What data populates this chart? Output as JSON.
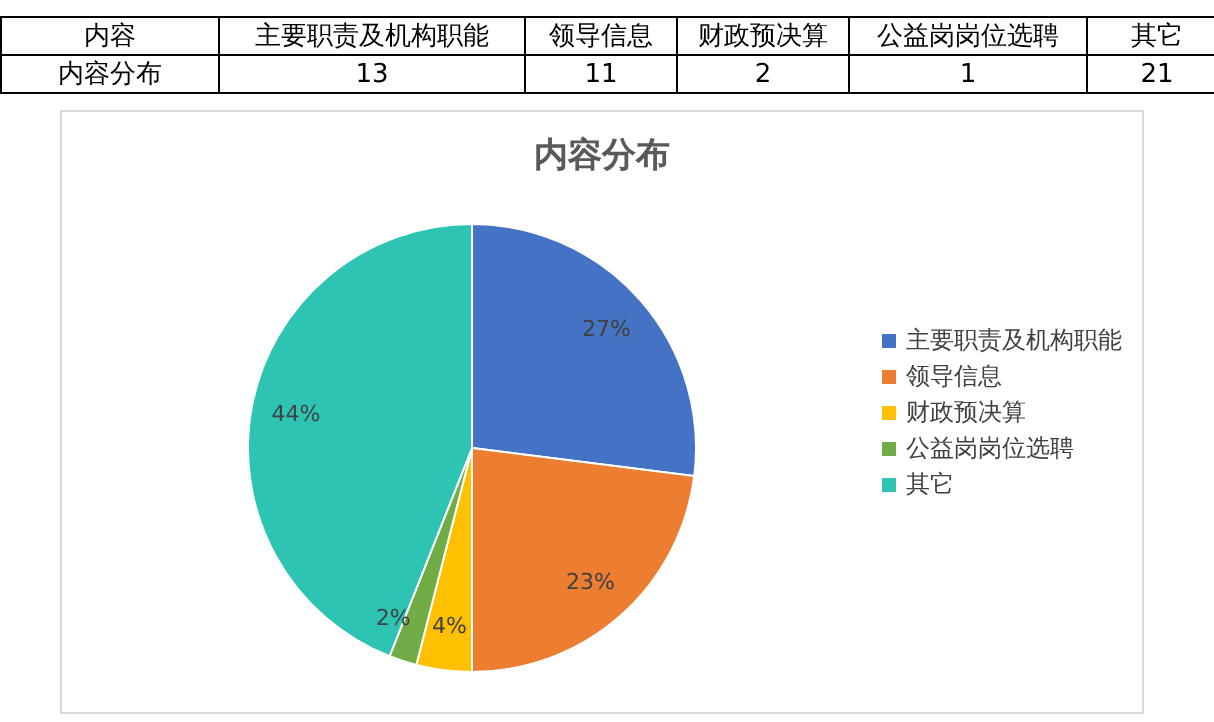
{
  "chart_data": [
    {
      "type": "other",
      "categories": [
        "主要职责及机构职能",
        "领导信息",
        "财政预决算",
        "公益岗岗位选聘",
        "其它"
      ],
      "values": [
        13,
        11,
        2,
        1,
        21
      ],
      "data_labels": true,
      "annotations": [
        "内容",
        "内容分布"
      ]
    },
    {
      "type": "pie",
      "title": "内容分布",
      "categories": [
        "主要职责及机构职能",
        "领导信息",
        "财政预决算",
        "公益岗岗位选聘",
        "其它"
      ],
      "values": [
        27,
        23,
        4,
        2,
        44
      ],
      "colors": [
        "#4472c4",
        "#ed7d31",
        "#ffc000",
        "#70ad47",
        "#2ec4b4"
      ],
      "value_labels": [
        "27%",
        "23%",
        "4%",
        "2%",
        "44%"
      ],
      "legend": "right"
    }
  ]
}
